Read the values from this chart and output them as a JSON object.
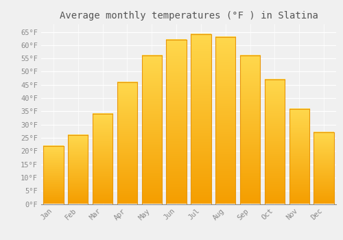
{
  "title": "Average monthly temperatures (°F ) in Slatina",
  "months": [
    "Jan",
    "Feb",
    "Mar",
    "Apr",
    "May",
    "Jun",
    "Jul",
    "Aug",
    "Sep",
    "Oct",
    "Nov",
    "Dec"
  ],
  "values": [
    22,
    26,
    34,
    46,
    56,
    62,
    64,
    63,
    56,
    47,
    36,
    27
  ],
  "bar_color": "#FFC72C",
  "bar_bottom_color": "#F5A800",
  "background_color": "#F0F0F0",
  "grid_color": "#FFFFFF",
  "ylim": [
    0,
    68
  ],
  "yticks": [
    0,
    5,
    10,
    15,
    20,
    25,
    30,
    35,
    40,
    45,
    50,
    55,
    60,
    65
  ],
  "ytick_labels": [
    "0°F",
    "5°F",
    "10°F",
    "15°F",
    "20°F",
    "25°F",
    "30°F",
    "35°F",
    "40°F",
    "45°F",
    "50°F",
    "55°F",
    "60°F",
    "65°F"
  ],
  "title_fontsize": 10,
  "tick_fontsize": 7.5,
  "font_family": "monospace",
  "tick_color": "#888888"
}
